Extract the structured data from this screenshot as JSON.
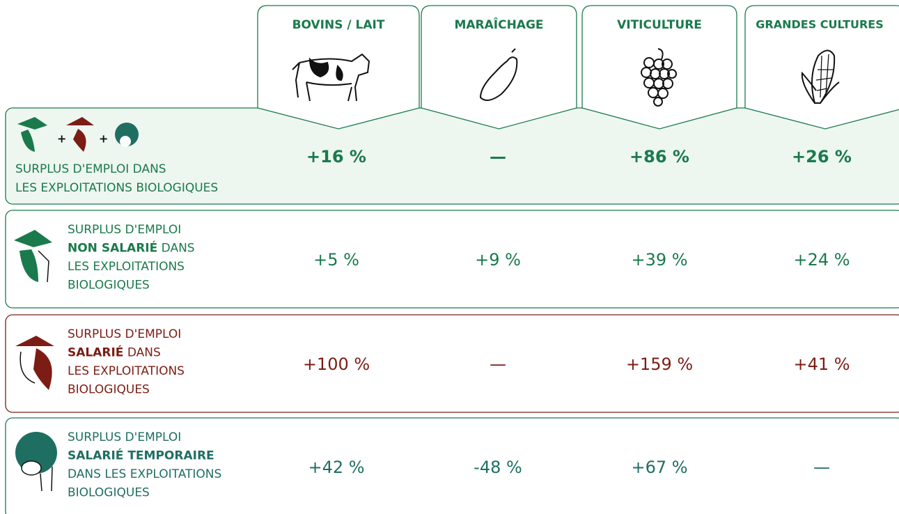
{
  "columns": [
    "BOVINS / LAIT",
    "MARAÎCHAGE",
    "VITICULTURE",
    "GRANDES CULTURES"
  ],
  "rows": [
    {
      "color": "#1a7a4c",
      "bold": true,
      "label": [
        [
          {
            "text": "SURPLUS D'EMPLOI DANS"
          }
        ],
        [
          {
            "text": "LES EXPLOITATIONS BIOLOGIQUES"
          }
        ]
      ],
      "values": [
        "+16 %",
        "—",
        "+86 %",
        "+26 %"
      ]
    },
    {
      "color": "#1a7a4c",
      "label": [
        [
          {
            "text": "SURPLUS D'EMPLOI"
          }
        ],
        [
          {
            "text": "NON SALARIÉ",
            "bold": true
          },
          {
            "text": " DANS"
          }
        ],
        [
          {
            "text": "LES EXPLOITATIONS"
          }
        ],
        [
          {
            "text": "BIOLOGIQUES"
          }
        ]
      ],
      "values": [
        "+5 %",
        "+9 %",
        "+39 %",
        "+24 %"
      ]
    },
    {
      "color": "#7b1d14",
      "label": [
        [
          {
            "text": "SURPLUS D'EMPLOI"
          }
        ],
        [
          {
            "text": "SALARIÉ",
            "bold": true
          },
          {
            "text": " DANS"
          }
        ],
        [
          {
            "text": "LES EXPLOITATIONS"
          }
        ],
        [
          {
            "text": "BIOLOGIQUES"
          }
        ]
      ],
      "values": [
        "+100 %",
        "—",
        "+159 %",
        "+41 %"
      ]
    },
    {
      "color": "#1f6e62",
      "label": [
        [
          {
            "text": "SURPLUS D'EMPLOI"
          }
        ],
        [
          {
            "text": "SALARIÉ TEMPORAIRE",
            "bold": true
          }
        ],
        [
          {
            "text": "DANS LES EXPLOITATIONS"
          }
        ],
        [
          {
            "text": "BIOLOGIQUES"
          }
        ]
      ],
      "values": [
        "+42 %",
        "-48 %",
        "+67 %",
        "—"
      ]
    }
  ]
}
